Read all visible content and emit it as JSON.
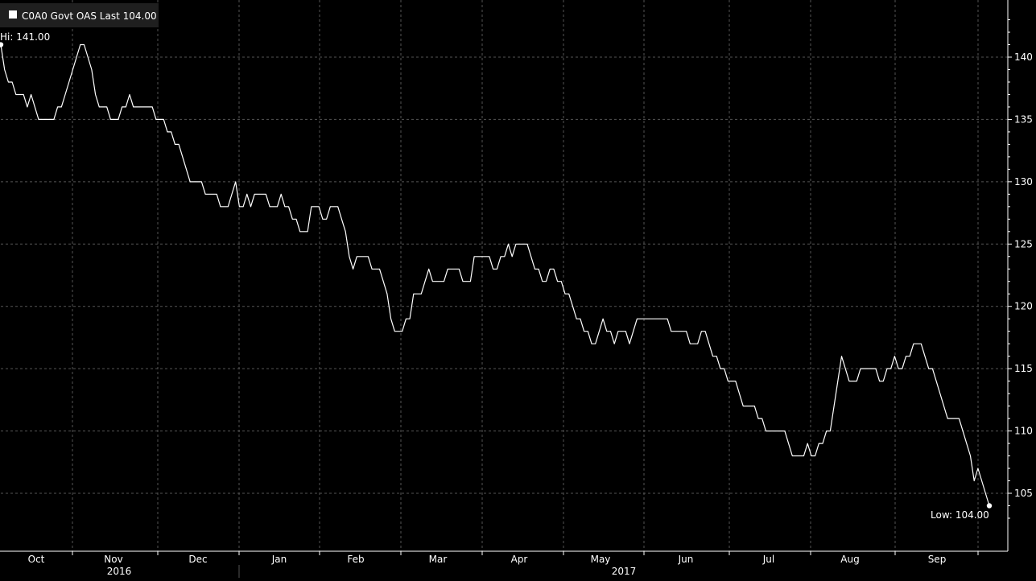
{
  "legend": {
    "label": "C0A0 Govt OAS Last 104.00",
    "swatch_color": "#ffffff",
    "bg_color": "#1f1f1f"
  },
  "annotations": {
    "high_label": "Hi: 141.00",
    "low_label": "Low: 104.00"
  },
  "colors": {
    "background": "#000000",
    "line": "#ffffff",
    "grid": "#555555",
    "text": "#ffffff"
  },
  "chart_data": {
    "type": "line",
    "title": "",
    "xlabel": "",
    "ylabel": "",
    "ylim": [
      102,
      143
    ],
    "grid": true,
    "y_axis_side": "right",
    "legend_position": "top-left",
    "y_ticks": [
      105,
      110,
      115,
      120,
      125,
      130,
      135,
      140
    ],
    "x_tick_labels": [
      {
        "label": "Oct"
      },
      {
        "label": "Nov"
      },
      {
        "label": "Dec"
      },
      {
        "label": "Jan"
      },
      {
        "label": "Feb"
      },
      {
        "label": "Mar"
      },
      {
        "label": "Apr"
      },
      {
        "label": "May"
      },
      {
        "label": "Jun"
      },
      {
        "label": "Jul"
      },
      {
        "label": "Aug"
      },
      {
        "label": "Sep"
      }
    ],
    "year_labels": [
      "2016",
      "2017"
    ],
    "series": [
      {
        "name": "C0A0 Govt OAS",
        "values": [
          141,
          139,
          138,
          138,
          137,
          137,
          137,
          136,
          137,
          136,
          135,
          135,
          135,
          135,
          135,
          136,
          136,
          137,
          138,
          139,
          140,
          141,
          141,
          140,
          139,
          137,
          136,
          136,
          136,
          135,
          135,
          135,
          136,
          136,
          137,
          136,
          136,
          136,
          136,
          136,
          136,
          135,
          135,
          135,
          134,
          134,
          133,
          133,
          132,
          131,
          130,
          130,
          130,
          130,
          129,
          129,
          129,
          129,
          128,
          128,
          128,
          129,
          130,
          128,
          128,
          129,
          128,
          129,
          129,
          129,
          129,
          128,
          128,
          128,
          129,
          128,
          128,
          127,
          127,
          126,
          126,
          126,
          128,
          128,
          128,
          127,
          127,
          128,
          128,
          128,
          127,
          126,
          124,
          123,
          124,
          124,
          124,
          124,
          123,
          123,
          123,
          122,
          121,
          119,
          118,
          118,
          118,
          119,
          119,
          121,
          121,
          121,
          122,
          123,
          122,
          122,
          122,
          122,
          123,
          123,
          123,
          123,
          122,
          122,
          122,
          124,
          124,
          124,
          124,
          124,
          123,
          123,
          124,
          124,
          125,
          124,
          125,
          125,
          125,
          125,
          124,
          123,
          123,
          122,
          122,
          123,
          123,
          122,
          122,
          121,
          121,
          120,
          119,
          119,
          118,
          118,
          117,
          117,
          118,
          119,
          118,
          118,
          117,
          118,
          118,
          118,
          117,
          118,
          119,
          119,
          119,
          119,
          119,
          119,
          119,
          119,
          119,
          118,
          118,
          118,
          118,
          118,
          117,
          117,
          117,
          118,
          118,
          117,
          116,
          116,
          115,
          115,
          114,
          114,
          114,
          113,
          112,
          112,
          112,
          112,
          111,
          111,
          110,
          110,
          110,
          110,
          110,
          110,
          109,
          108,
          108,
          108,
          108,
          109,
          108,
          108,
          109,
          109,
          110,
          110,
          112,
          114,
          116,
          115,
          114,
          114,
          114,
          115,
          115,
          115,
          115,
          115,
          114,
          114,
          115,
          115,
          116,
          115,
          115,
          116,
          116,
          117,
          117,
          117,
          116,
          115,
          115,
          114,
          113,
          112,
          111,
          111,
          111,
          111,
          110,
          109,
          108,
          106,
          107,
          106,
          105,
          104
        ]
      }
    ],
    "high": 141.0,
    "low": 104.0
  }
}
